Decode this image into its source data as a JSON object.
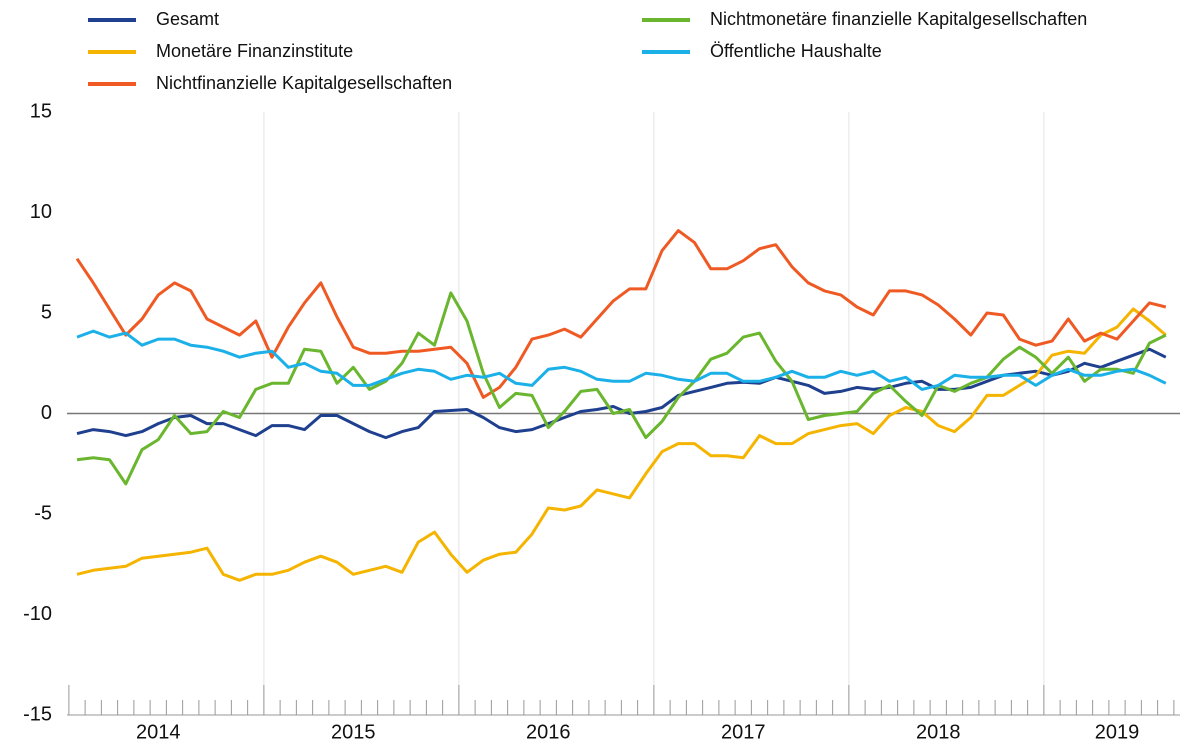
{
  "chart_data": {
    "type": "line",
    "categories": [
      null,
      null,
      null,
      null,
      null,
      "2014",
      null,
      null,
      null,
      null,
      null,
      null,
      null,
      null,
      null,
      null,
      null,
      "2015",
      null,
      null,
      null,
      null,
      null,
      null,
      null,
      null,
      null,
      null,
      null,
      "2016",
      null,
      null,
      null,
      null,
      null,
      null,
      null,
      null,
      null,
      null,
      null,
      "2017",
      null,
      null,
      null,
      null,
      null,
      null,
      null,
      null,
      null,
      null,
      null,
      "2018",
      null,
      null,
      null,
      null,
      null,
      null,
      null,
      null,
      null,
      null,
      "2019",
      null,
      null,
      null
    ],
    "series": [
      {
        "name": "Gesamt",
        "color": "#1f3f8f",
        "values": [
          -1.0,
          -0.8,
          -0.9,
          -1.1,
          -0.9,
          -0.5,
          -0.2,
          -0.1,
          -0.5,
          -0.5,
          -0.8,
          -1.1,
          -0.6,
          -0.6,
          -0.8,
          -0.1,
          -0.1,
          -0.5,
          -0.9,
          -1.2,
          -0.9,
          -0.7,
          0.1,
          0.15,
          0.2,
          -0.2,
          -0.7,
          -0.9,
          -0.8,
          -0.5,
          -0.2,
          0.1,
          0.2,
          0.35,
          0.0,
          0.1,
          0.3,
          0.9,
          1.1,
          1.3,
          1.5,
          1.55,
          1.5,
          1.8,
          1.6,
          1.4,
          1.0,
          1.1,
          1.3,
          1.2,
          1.3,
          1.5,
          1.6,
          1.2,
          1.2,
          1.3,
          1.6,
          1.9,
          2.0,
          2.1,
          1.9,
          2.1,
          2.5,
          2.3,
          2.6,
          2.9,
          3.2,
          2.8
        ]
      },
      {
        "name": "Monetäre Finanzinstitute",
        "color": "#f5b400",
        "values": [
          -8.0,
          -7.8,
          -7.7,
          -7.6,
          -7.2,
          -7.1,
          -7.0,
          -6.9,
          -6.7,
          -8.0,
          -8.3,
          -8.0,
          -8.0,
          -7.8,
          -7.4,
          -7.1,
          -7.4,
          -8.0,
          -7.8,
          -7.6,
          -7.9,
          -6.4,
          -5.9,
          -7.0,
          -7.9,
          -7.3,
          -7.0,
          -6.9,
          -6.0,
          -4.7,
          -4.8,
          -4.6,
          -3.8,
          -4.0,
          -4.2,
          -3.0,
          -1.9,
          -1.5,
          -1.5,
          -2.1,
          -2.1,
          -2.2,
          -1.1,
          -1.5,
          -1.5,
          -1.0,
          -0.8,
          -0.6,
          -0.5,
          -1.0,
          -0.1,
          0.3,
          0.1,
          -0.6,
          -0.9,
          -0.2,
          0.9,
          0.9,
          1.4,
          1.9,
          2.9,
          3.1,
          3.0,
          3.9,
          4.3,
          5.2,
          4.6,
          3.9
        ]
      },
      {
        "name": "Nichtfinanzielle Kapitalgesellschaften",
        "color": "#ef5a24",
        "values": [
          7.7,
          6.5,
          5.2,
          3.9,
          4.7,
          5.9,
          6.5,
          6.1,
          4.7,
          4.3,
          3.9,
          4.6,
          2.8,
          4.3,
          5.5,
          6.5,
          4.8,
          3.3,
          3.0,
          3.0,
          3.1,
          3.1,
          3.2,
          3.3,
          2.5,
          0.8,
          1.3,
          2.3,
          3.7,
          3.9,
          4.2,
          3.8,
          4.7,
          5.6,
          6.2,
          6.2,
          8.1,
          9.1,
          8.5,
          7.2,
          7.2,
          7.6,
          8.2,
          8.4,
          7.3,
          6.5,
          6.1,
          5.9,
          5.3,
          4.9,
          6.1,
          6.1,
          5.9,
          5.4,
          4.7,
          3.9,
          5.0,
          4.9,
          3.7,
          3.4,
          3.6,
          4.7,
          3.6,
          4.0,
          3.7,
          4.6,
          5.5,
          5.3
        ]
      },
      {
        "name": "Nichtmonetäre finanzielle Kapitalgesellschaften",
        "color": "#6ab62e",
        "values": [
          -2.3,
          -2.2,
          -2.3,
          -3.5,
          -1.8,
          -1.3,
          -0.1,
          -1.0,
          -0.9,
          0.1,
          -0.2,
          1.2,
          1.5,
          1.5,
          3.2,
          3.1,
          1.5,
          2.3,
          1.2,
          1.6,
          2.5,
          4.0,
          3.4,
          6.0,
          4.6,
          2.0,
          0.3,
          1.0,
          0.9,
          -0.7,
          0.1,
          1.1,
          1.2,
          0.0,
          0.2,
          -1.2,
          -0.4,
          0.8,
          1.6,
          2.7,
          3.0,
          3.8,
          4.0,
          2.6,
          1.6,
          -0.3,
          -0.1,
          0.0,
          0.1,
          1.0,
          1.4,
          0.6,
          -0.1,
          1.4,
          1.1,
          1.5,
          1.8,
          2.7,
          3.3,
          2.8,
          2.0,
          2.8,
          1.6,
          2.2,
          2.2,
          2.0,
          3.5,
          3.9
        ]
      },
      {
        "name": "Öffentliche Haushalte",
        "color": "#1bb0e8",
        "values": [
          3.8,
          4.1,
          3.8,
          4.0,
          3.4,
          3.7,
          3.7,
          3.4,
          3.3,
          3.1,
          2.8,
          3.0,
          3.1,
          2.3,
          2.5,
          2.1,
          2.0,
          1.4,
          1.4,
          1.7,
          2.0,
          2.2,
          2.1,
          1.7,
          1.9,
          1.8,
          2.0,
          1.5,
          1.4,
          2.2,
          2.3,
          2.1,
          1.7,
          1.6,
          1.6,
          2.0,
          1.9,
          1.7,
          1.6,
          2.0,
          2.0,
          1.6,
          1.6,
          1.8,
          2.1,
          1.8,
          1.8,
          2.1,
          1.9,
          2.1,
          1.6,
          1.8,
          1.2,
          1.4,
          1.9,
          1.8,
          1.8,
          1.9,
          1.9,
          1.4,
          1.9,
          2.2,
          1.9,
          1.9,
          2.1,
          2.2,
          1.9,
          1.5
        ]
      }
    ],
    "ylim": [
      -15,
      15
    ],
    "yticks": [
      -15,
      -10,
      -5,
      0,
      5,
      10,
      15
    ]
  }
}
